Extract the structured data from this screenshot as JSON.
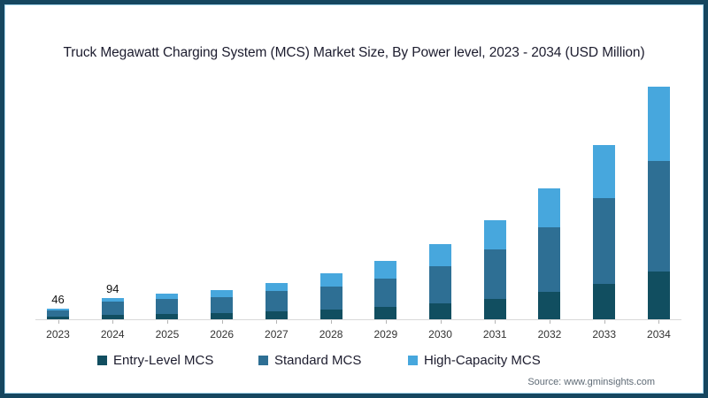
{
  "chart_data": {
    "type": "bar",
    "stacked": true,
    "title": "Truck Megawatt Charging System (MCS) Market Size, By Power level, 2023 - 2034 (USD Million)",
    "categories": [
      "2023",
      "2024",
      "2025",
      "2026",
      "2027",
      "2028",
      "2029",
      "2030",
      "2031",
      "2032",
      "2033",
      "2034"
    ],
    "series": [
      {
        "name": "Entry-Level MCS",
        "color": "#114e60",
        "values": [
          10,
          20,
          24,
          27,
          34,
          42,
          54,
          70,
          92,
          120,
          158,
          212
        ]
      },
      {
        "name": "Standard MCS",
        "color": "#2e6f94",
        "values": [
          29,
          58,
          66,
          72,
          90,
          104,
          128,
          165,
          218,
          287,
          379,
          490
        ]
      },
      {
        "name": "High-Capacity MCS",
        "color": "#47a7dd",
        "values": [
          7,
          16,
          22,
          29,
          37,
          56,
          75,
          98,
          130,
          174,
          237,
          331
        ]
      }
    ],
    "data_labels": [
      46,
      94,
      null,
      null,
      null,
      null,
      null,
      null,
      null,
      null,
      null,
      null
    ],
    "xlabel": "",
    "ylabel": "",
    "ylim": [
      0,
      1100
    ],
    "grid": false,
    "y_axis_visible": false,
    "legend_position": "bottom"
  },
  "source": {
    "text": "Source: www.gminsights.com"
  }
}
